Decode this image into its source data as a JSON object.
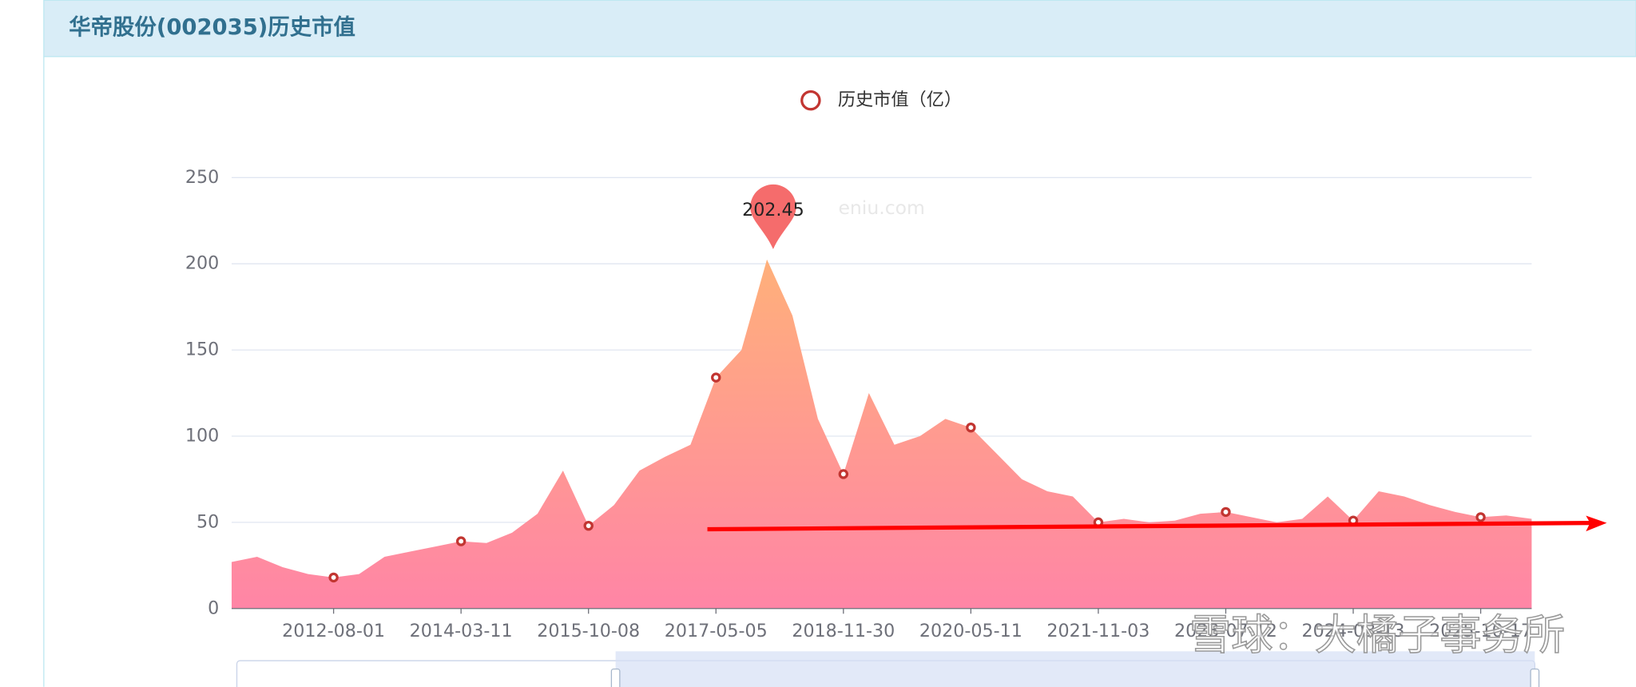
{
  "header": {
    "title": "华帝股份(002035)历史市值"
  },
  "watermarks": {
    "site": "eniu.com",
    "author": "雪球：大橘子事务所"
  },
  "chart_data": {
    "type": "area",
    "series": [
      {
        "name": "历史市值（亿）",
        "color": "#c23531"
      }
    ],
    "x": [
      null,
      null,
      null,
      null,
      "2012-08-01",
      null,
      null,
      null,
      null,
      "2014-03-11",
      null,
      null,
      null,
      null,
      "2015-10-08",
      null,
      null,
      null,
      null,
      "2017-05-05",
      null,
      null,
      null,
      null,
      "2018-11-30",
      null,
      null,
      null,
      null,
      "2020-05-11",
      null,
      null,
      null,
      null,
      "2021-11-03",
      null,
      null,
      null,
      null,
      "2023-07-12",
      null,
      null,
      null,
      null,
      "2024-03-13",
      null,
      null,
      null,
      null,
      "2025-10-17",
      null,
      null
    ],
    "values": [
      27,
      30,
      24,
      20,
      18,
      20,
      30,
      33,
      36,
      39,
      38,
      44,
      55,
      80,
      48,
      60,
      80,
      88,
      95,
      134,
      150,
      202.45,
      170,
      110,
      78,
      125,
      95,
      100,
      110,
      105,
      90,
      75,
      68,
      65,
      50,
      52,
      50,
      51,
      55,
      56,
      53,
      50,
      52,
      65,
      51,
      68,
      65,
      60,
      56,
      53,
      54,
      52
    ],
    "ylim": [
      0,
      250
    ],
    "yticks": [
      0,
      50,
      100,
      150,
      200,
      250
    ],
    "grid": true
  }
}
